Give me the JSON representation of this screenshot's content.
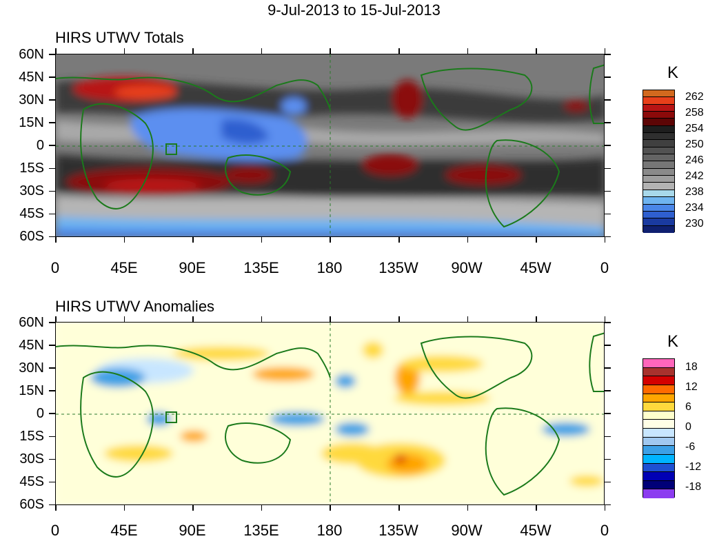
{
  "title": "9-Jul-2013 to 15-Jul-2013",
  "panels": [
    {
      "title": "HIRS UTWV Totals",
      "unit": "K",
      "colorbar_labels": [
        "262",
        "258",
        "254",
        "250",
        "246",
        "242",
        "238",
        "234",
        "230"
      ],
      "colorbar_colors": [
        "#d2691e",
        "#e8401a",
        "#b81414",
        "#8b0a0a",
        "#5c0505",
        "#1e1e1e",
        "#2f2f2f",
        "#404040",
        "#525252",
        "#646464",
        "#777777",
        "#8a8a8a",
        "#9e9e9e",
        "#b3b3b3",
        "#a8d8ea",
        "#6fb4f0",
        "#4a86e8",
        "#2f5fcf",
        "#1a3aa0",
        "#0f2070"
      ]
    },
    {
      "title": "HIRS UTWV Anomalies",
      "unit": "K",
      "colorbar_labels": [
        "18",
        "12",
        "6",
        "0",
        "-6",
        "-12",
        "-18"
      ],
      "colorbar_colors": [
        "#ff66bb",
        "#a8322d",
        "#d40000",
        "#ff6a00",
        "#ffa500",
        "#ffd93d",
        "#ffffcc",
        "#ffffe6",
        "#c8e6ff",
        "#a0c8f0",
        "#3ca0e6",
        "#00b4ff",
        "#1e50d2",
        "#0000b4",
        "#000078",
        "#8c3cf0"
      ]
    }
  ],
  "y_axis_labels": [
    "60N",
    "45N",
    "30N",
    "15N",
    "0",
    "15S",
    "30S",
    "45S",
    "60S"
  ],
  "x_axis_labels": [
    "0",
    "45E",
    "90E",
    "135E",
    "180",
    "135W",
    "90W",
    "45W",
    "0"
  ]
}
